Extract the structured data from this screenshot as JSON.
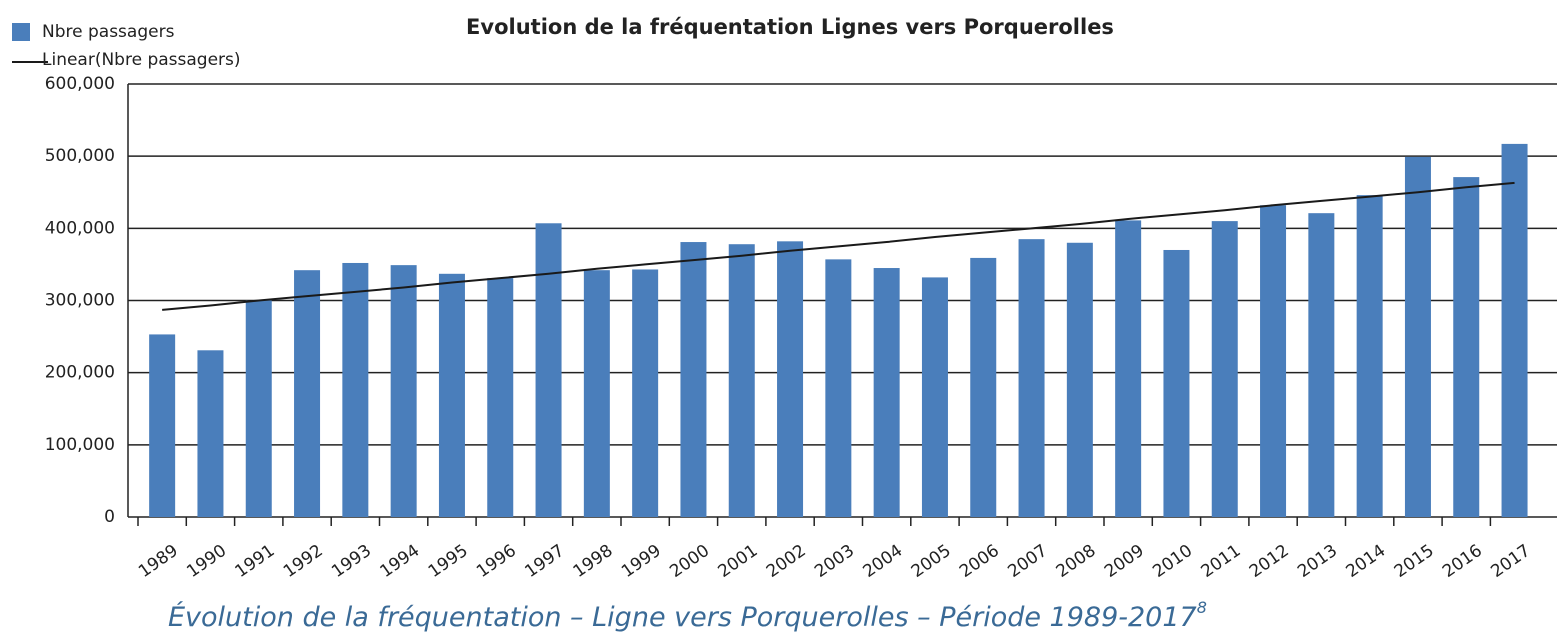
{
  "chart_data": {
    "type": "bar",
    "title": "Evolution de la fréquentation Lignes vers Porquerolles",
    "caption": "Évolution de la fréquentation – Ligne vers Porquerolles – Période 1989-2017",
    "caption_note": "8",
    "categories": [
      "1989",
      "1990",
      "1991",
      "1992",
      "1993",
      "1994",
      "1995",
      "1996",
      "1997",
      "1998",
      "1999",
      "2000",
      "2001",
      "2002",
      "2003",
      "2004",
      "2005",
      "2006",
      "2007",
      "2008",
      "2009",
      "2010",
      "2011",
      "2012",
      "2013",
      "2014",
      "2015",
      "2016",
      "2017"
    ],
    "series": [
      {
        "name": "Nbre passagers",
        "color": "#4a7ebb",
        "type": "bar",
        "values": [
          253000,
          231000,
          300000,
          342000,
          352000,
          349000,
          337000,
          331000,
          407000,
          342000,
          343000,
          381000,
          378000,
          382000,
          357000,
          345000,
          332000,
          359000,
          385000,
          380000,
          411000,
          370000,
          410000,
          432000,
          421000,
          446000,
          499000,
          471000,
          517000
        ]
      },
      {
        "name": "Linear(Nbre passagers)",
        "color": "#1a1a1a",
        "type": "line",
        "values": [
          287000,
          293000,
          300000,
          306000,
          312000,
          318000,
          325000,
          331000,
          337000,
          344000,
          350000,
          356000,
          362000,
          369000,
          375000,
          381000,
          388000,
          394000,
          400000,
          406000,
          413000,
          419000,
          425000,
          432000,
          438000,
          444000,
          450000,
          457000,
          463000
        ]
      }
    ],
    "ylim": [
      0,
      600000
    ],
    "yticks": [
      0,
      {
        "value": 100000,
        "label": "100,000"
      },
      {
        "value": 200000,
        "label": "200,000"
      },
      {
        "value": 300000,
        "label": "300,000"
      },
      {
        "value": 400000,
        "label": "400,000"
      },
      {
        "value": 500000,
        "label": "500,000"
      },
      {
        "value": 600000,
        "label": "600,000"
      }
    ],
    "grid": true,
    "legend": "top-left"
  }
}
